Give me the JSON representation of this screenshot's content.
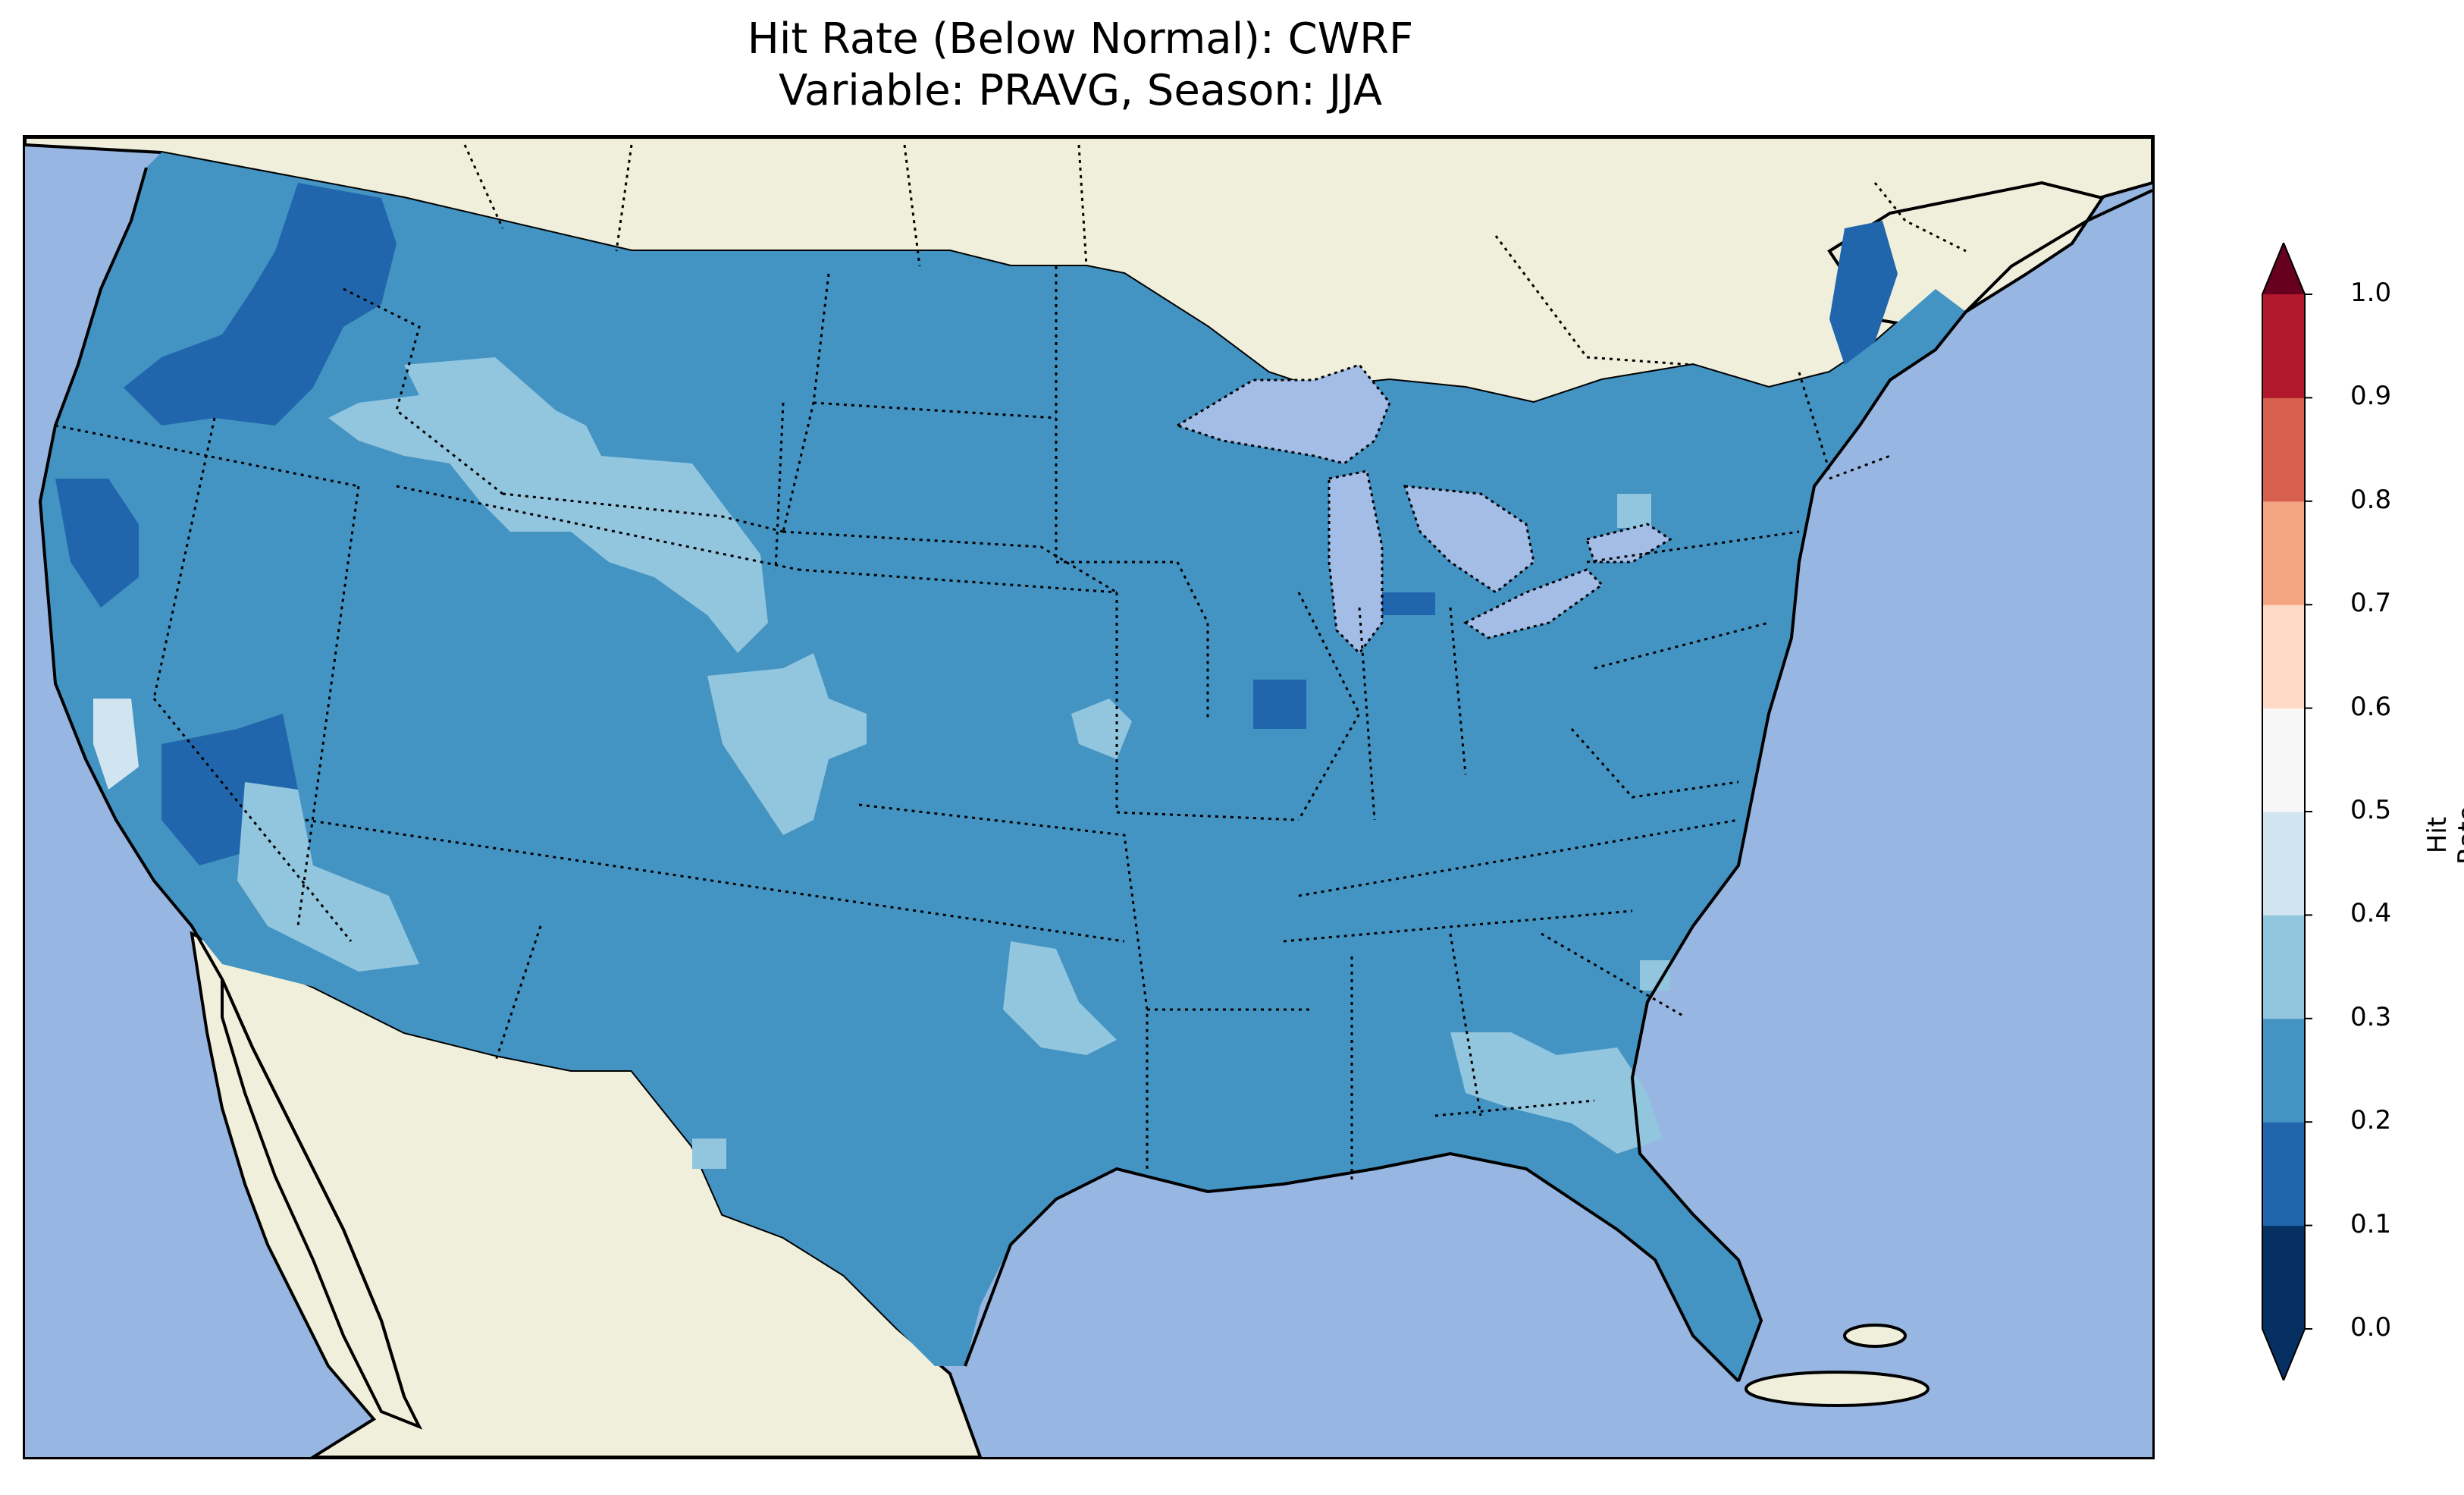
{
  "title": {
    "line1": "Hit Rate (Below Normal): CWRF",
    "line2": "Variable: PRAVG, Season: JJA"
  },
  "colors": {
    "ocean": "#97b6e1",
    "land": "#efefdc",
    "lakes": "#a4bde7",
    "value_0_1": "#053061",
    "value_1_2": "#2166ac",
    "value_2_3": "#4393c3",
    "value_3_4": "#92c5de",
    "value_4_5": "#d1e5f0",
    "value_5_6": "#f7f7f7",
    "value_6_7": "#fddbc7",
    "value_7_8": "#f4a582",
    "value_8_9": "#d6604d",
    "value_9_10": "#b2182b"
  },
  "colorbar": {
    "label": "Hit Rate",
    "ticks": [
      "0.0",
      "0.1",
      "0.2",
      "0.3",
      "0.4",
      "0.5",
      "0.6",
      "0.7",
      "0.8",
      "0.9",
      "1.0"
    ],
    "colors": [
      "#053061",
      "#2166ac",
      "#4393c3",
      "#92c5de",
      "#d1e5f0",
      "#f7f7f7",
      "#fddbc7",
      "#f4a582",
      "#d6604d",
      "#b2182b",
      "#67001f"
    ],
    "extend": "both"
  },
  "map": {
    "region": "Contiguous United States",
    "dominant_range": "0.2–0.3",
    "lower_range_regions": [
      "Pacific Northwest",
      "Northern California",
      "Central California",
      "Maine",
      "Illinois"
    ],
    "higher_range_regions": [
      "Idaho–Montana",
      "Colorado",
      "Southern California",
      "Oklahoma",
      "Georgia–Florida"
    ]
  }
}
